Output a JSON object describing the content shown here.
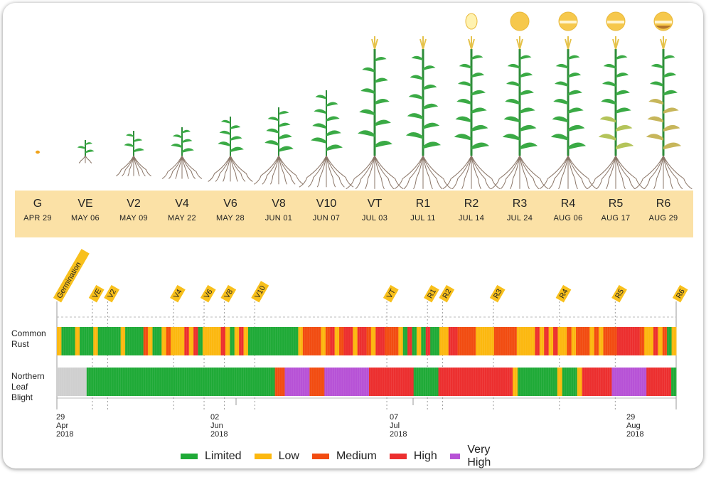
{
  "colors": {
    "limited": "#1faa37",
    "low": "#fcb80f",
    "medium": "#f24c11",
    "high": "#ec2f2f",
    "very_high": "#b752d6",
    "none": "#cfcfcf",
    "stage_band": "#fbe1a6",
    "tag": "#f8c01c"
  },
  "stages": [
    {
      "code": "G",
      "date": "APR 29"
    },
    {
      "code": "VE",
      "date": "MAY 06"
    },
    {
      "code": "V2",
      "date": "MAY 09"
    },
    {
      "code": "V4",
      "date": "MAY 22"
    },
    {
      "code": "V6",
      "date": "MAY 28"
    },
    {
      "code": "V8",
      "date": "JUN 01"
    },
    {
      "code": "V10",
      "date": "JUN 07"
    },
    {
      "code": "VT",
      "date": "JUL 03"
    },
    {
      "code": "R1",
      "date": "JUL 11"
    },
    {
      "code": "R2",
      "date": "JUL 14"
    },
    {
      "code": "R3",
      "date": "JUL 24"
    },
    {
      "code": "R4",
      "date": "AUG 06"
    },
    {
      "code": "R5",
      "date": "AUG 17"
    },
    {
      "code": "R6",
      "date": "AUG 29"
    }
  ],
  "chart_data": {
    "type": "heatmap",
    "x_range": [
      "2018-04-29",
      "2018-08-29"
    ],
    "x_tick_labels": [
      "29 Apr 2018",
      "02 Jun 2018",
      "07 Jul 2018",
      "29 Aug 2018"
    ],
    "stage_markers": [
      {
        "label": "Germination",
        "date": "2018-04-29"
      },
      {
        "label": "VE",
        "date": "2018-05-06"
      },
      {
        "label": "V2",
        "date": "2018-05-09"
      },
      {
        "label": "V4",
        "date": "2018-05-22"
      },
      {
        "label": "V6",
        "date": "2018-05-28"
      },
      {
        "label": "V8",
        "date": "2018-06-01"
      },
      {
        "label": "V10",
        "date": "2018-06-07"
      },
      {
        "label": "VT",
        "date": "2018-07-03"
      },
      {
        "label": "R1",
        "date": "2018-07-11"
      },
      {
        "label": "R2",
        "date": "2018-07-14"
      },
      {
        "label": "R3",
        "date": "2018-07-24"
      },
      {
        "label": "R4",
        "date": "2018-08-06"
      },
      {
        "label": "R5",
        "date": "2018-08-17"
      },
      {
        "label": "R6",
        "date": "2018-08-29"
      }
    ],
    "series": [
      {
        "name": "Common Rust",
        "runs": [
          [
            "low",
            1
          ],
          [
            "limited",
            3
          ],
          [
            "low",
            1
          ],
          [
            "limited",
            1
          ],
          [
            "limited",
            2
          ],
          [
            "low",
            1
          ],
          [
            "limited",
            4
          ],
          [
            "limited",
            1
          ],
          [
            "low",
            1
          ],
          [
            "limited",
            4
          ],
          [
            "medium",
            1
          ],
          [
            "low",
            1
          ],
          [
            "limited",
            2
          ],
          [
            "low",
            1
          ],
          [
            "medium",
            1
          ],
          [
            "low",
            1
          ],
          [
            "low",
            2
          ],
          [
            "high",
            1
          ],
          [
            "low",
            1
          ],
          [
            "high",
            1
          ],
          [
            "limited",
            1
          ],
          [
            "low",
            1
          ],
          [
            "low",
            3
          ],
          [
            "high",
            1
          ],
          [
            "low",
            1
          ],
          [
            "limited",
            1
          ],
          [
            "low",
            1
          ],
          [
            "high",
            1
          ],
          [
            "low",
            1
          ],
          [
            "limited",
            2
          ],
          [
            "limited",
            4
          ],
          [
            "limited",
            3
          ],
          [
            "limited",
            2
          ],
          [
            "low",
            1
          ],
          [
            "medium",
            1
          ],
          [
            "medium",
            3
          ],
          [
            "low",
            1
          ],
          [
            "medium",
            1
          ],
          [
            "high",
            1
          ],
          [
            "low",
            1
          ],
          [
            "medium",
            1
          ],
          [
            "high",
            2
          ],
          [
            "low",
            1
          ],
          [
            "high",
            2
          ],
          [
            "medium",
            1
          ],
          [
            "low",
            1
          ],
          [
            "high",
            2
          ],
          [
            "medium",
            1
          ],
          [
            "medium",
            2
          ],
          [
            "low",
            1
          ],
          [
            "limited",
            1
          ],
          [
            "high",
            1
          ],
          [
            "limited",
            1
          ],
          [
            "low",
            1
          ],
          [
            "limited",
            1
          ],
          [
            "high",
            1
          ],
          [
            "limited",
            2
          ],
          [
            "low",
            2
          ],
          [
            "high",
            2
          ],
          [
            "medium",
            2
          ],
          [
            "medium",
            2
          ],
          [
            "low",
            4
          ],
          [
            "medium",
            2
          ],
          [
            "medium",
            3
          ],
          [
            "low",
            4
          ],
          [
            "high",
            1
          ],
          [
            "low",
            1
          ],
          [
            "high",
            1
          ],
          [
            "low",
            1
          ],
          [
            "high",
            1
          ],
          [
            "low",
            2
          ],
          [
            "medium",
            1
          ],
          [
            "low",
            1
          ],
          [
            "medium",
            3
          ],
          [
            "low",
            1
          ],
          [
            "medium",
            1
          ],
          [
            "low",
            1
          ],
          [
            "medium",
            3
          ],
          [
            "high",
            3
          ],
          [
            "high",
            2
          ],
          [
            "medium",
            1
          ],
          [
            "low",
            2
          ],
          [
            "high",
            1
          ],
          [
            "low",
            1
          ],
          [
            "medium",
            1
          ],
          [
            "limited",
            1
          ],
          [
            "low",
            1
          ]
        ]
      },
      {
        "name": "Northern Leaf Blight",
        "runs": [
          [
            "none",
            6
          ],
          [
            "limited",
            38
          ],
          [
            "medium",
            2
          ],
          [
            "very_high",
            5
          ],
          [
            "medium",
            3
          ],
          [
            "very_high",
            9
          ],
          [
            "high",
            9
          ],
          [
            "limited",
            5
          ],
          [
            "high",
            15
          ],
          [
            "low",
            1
          ],
          [
            "limited",
            8
          ],
          [
            "low",
            1
          ],
          [
            "limited",
            3
          ],
          [
            "low",
            1
          ],
          [
            "high",
            6
          ],
          [
            "very_high",
            7
          ],
          [
            "high",
            5
          ],
          [
            "limited",
            1
          ]
        ]
      }
    ],
    "legend": [
      "Limited",
      "Low",
      "Medium",
      "High",
      "Very High"
    ],
    "legend_keys": [
      "limited",
      "low",
      "medium",
      "high",
      "very_high"
    ]
  }
}
